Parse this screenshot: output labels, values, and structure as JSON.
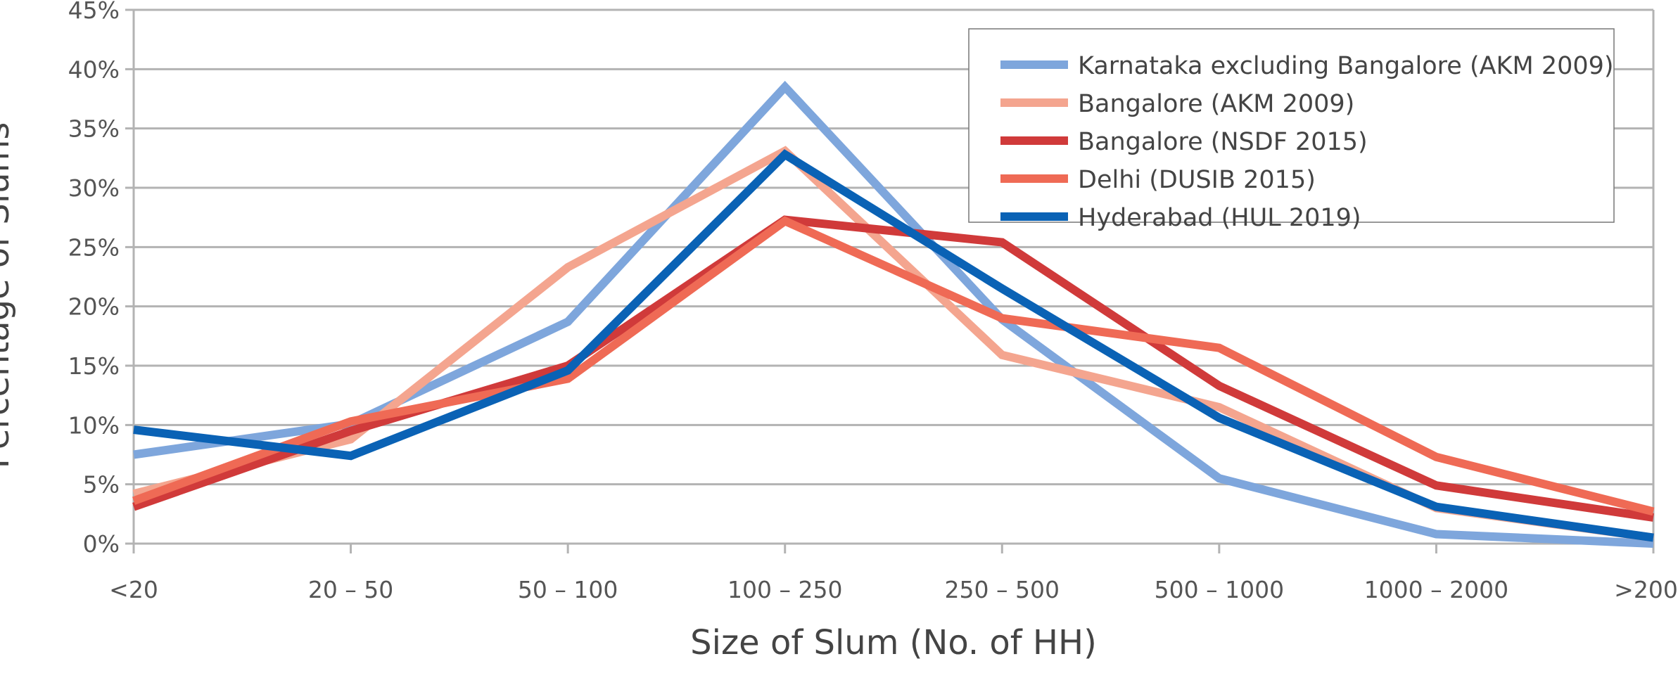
{
  "chart_data": {
    "type": "line",
    "title": "",
    "xlabel": "Size of Slum (No. of HH)",
    "ylabel": "Percentage of Slums",
    "categories": [
      "<20",
      "20 – 50",
      "50 – 100",
      "100 – 250",
      "250 – 500",
      "500 – 1000",
      "1000 – 2000",
      ">2000"
    ],
    "y_ticks": [
      "0%",
      "5%",
      "10%",
      "15%",
      "20%",
      "25%",
      "30%",
      "35%",
      "40%",
      "45%"
    ],
    "ylim": [
      0,
      45
    ],
    "y_unit": "%",
    "grid": true,
    "legend_position": "top-right",
    "series": [
      {
        "name": "Karnataka excluding Bangalore (AKM 2009)",
        "color": "#7ea6dc",
        "values": [
          7.5,
          10.1,
          18.7,
          38.5,
          18.9,
          5.5,
          0.8,
          0.0
        ]
      },
      {
        "name": "Bangalore (AKM 2009)",
        "color": "#f4a58f",
        "values": [
          4.2,
          8.8,
          23.3,
          33.1,
          15.9,
          11.5,
          3.0,
          0.5
        ]
      },
      {
        "name": "Bangalore (NSDF 2015)",
        "color": "#d03a3a",
        "values": [
          3.1,
          9.5,
          15.0,
          27.3,
          25.4,
          13.3,
          4.9,
          2.2
        ]
      },
      {
        "name": "Delhi (DUSIB 2015)",
        "color": "#ef6a55",
        "values": [
          3.6,
          10.3,
          13.9,
          27.2,
          19.0,
          16.5,
          7.3,
          2.7
        ]
      },
      {
        "name": "Hyderabad (HUL 2019)",
        "color": "#0a62b5",
        "values": [
          9.6,
          7.4,
          14.6,
          32.8,
          21.5,
          10.6,
          3.1,
          0.5
        ]
      }
    ]
  }
}
